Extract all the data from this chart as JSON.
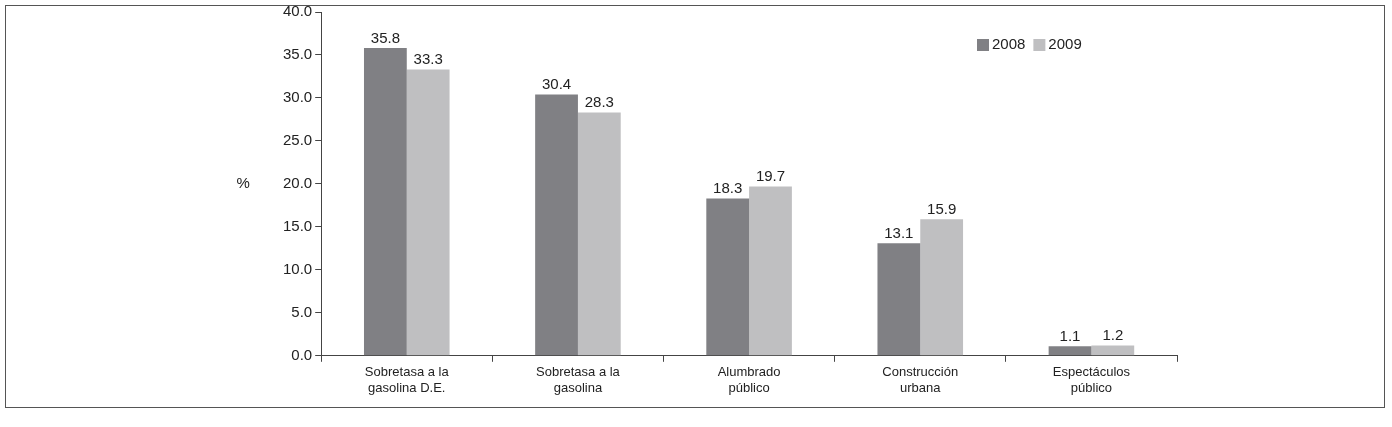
{
  "chart_data": {
    "type": "bar",
    "ylabel": "%",
    "categories": [
      "Sobretasa a la gasolina D.E.",
      "Sobretasa a la gasolina",
      "Alumbrado público",
      "Construcción urbana",
      "Espectáculos público"
    ],
    "series": [
      {
        "name": "2008",
        "color": "#808084",
        "values": [
          35.8,
          30.4,
          18.3,
          13.1,
          1.1
        ]
      },
      {
        "name": "2009",
        "color": "#bfbfc1",
        "values": [
          33.3,
          28.3,
          19.7,
          15.9,
          1.2
        ]
      }
    ],
    "ylim": [
      0,
      40
    ],
    "yticks": [
      {
        "value": 0,
        "label": "0.0"
      },
      {
        "value": 5,
        "label": "5.0"
      },
      {
        "value": 10,
        "label": "10.0"
      },
      {
        "value": 15,
        "label": "15.0"
      },
      {
        "value": 20,
        "label": "20.0"
      },
      {
        "value": 25,
        "label": "25.0"
      },
      {
        "value": 30,
        "label": "30.0"
      },
      {
        "value": 35,
        "label": "35.0"
      },
      {
        "value": 40,
        "label": "40.0"
      }
    ],
    "grid": false,
    "legend": "top right",
    "data_labels": true
  }
}
